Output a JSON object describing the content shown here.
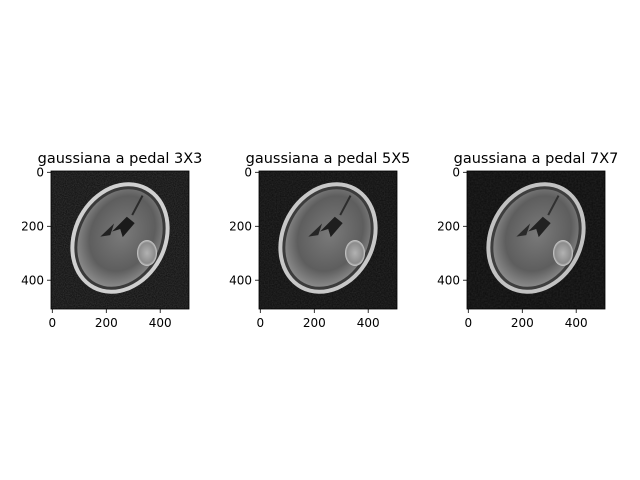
{
  "panels": [
    {
      "title": "gaussiana a pedal 3X3",
      "x_ticks": [
        "0",
        "200",
        "400"
      ],
      "y_ticks": [
        "0",
        "200",
        "400"
      ],
      "image_extent": 512,
      "tick_values": [
        0,
        200,
        400
      ]
    },
    {
      "title": "gaussiana a pedal 5X5",
      "x_ticks": [
        "0",
        "200",
        "400"
      ],
      "y_ticks": [
        "0",
        "200",
        "400"
      ],
      "image_extent": 512,
      "tick_values": [
        0,
        200,
        400
      ]
    },
    {
      "title": "gaussiana a pedal 7X7",
      "x_ticks": [
        "0",
        "200",
        "400"
      ],
      "y_ticks": [
        "0",
        "200",
        "400"
      ],
      "image_extent": 512,
      "tick_values": [
        0,
        200,
        400
      ]
    }
  ],
  "colors": {
    "background": "#ffffff",
    "image_background": "#0b0b0b",
    "skull": "#cfcfcf",
    "brain": "#6e6e6e",
    "lesion": "#9a9a9a"
  }
}
